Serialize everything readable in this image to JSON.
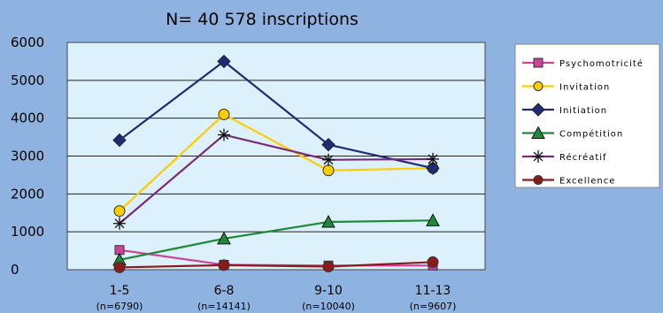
{
  "chart_data": {
    "type": "line",
    "title": "N= 40 578 inscriptions",
    "categories": [
      "1-5",
      "6-8",
      "9-10",
      "11-13"
    ],
    "category_sublabels": [
      "(n=6790)",
      "(n=14141)",
      "(n=10040)",
      "(n=9607)"
    ],
    "ylim": [
      0,
      6000
    ],
    "yticks": [
      "0",
      "1000",
      "2000",
      "3000",
      "4000",
      "5000",
      "6000"
    ],
    "grid": true,
    "legend_position": "right",
    "series": [
      {
        "name": "Psychomotricité",
        "color": "#cc4499",
        "marker": "square",
        "values": [
          520,
          130,
          110,
          110
        ]
      },
      {
        "name": "Invitation",
        "color": "#ffcc00",
        "marker": "circle",
        "values": [
          1550,
          4100,
          2620,
          2680
        ]
      },
      {
        "name": "Initiation",
        "color": "#1f2a78",
        "marker": "diamond",
        "values": [
          3420,
          5500,
          3300,
          2680
        ]
      },
      {
        "name": "Compétition",
        "color": "#1f8a3a",
        "marker": "triangle",
        "values": [
          260,
          820,
          1260,
          1300
        ]
      },
      {
        "name": "Récréatif",
        "color": "#7a2a7a",
        "marker": "star",
        "values": [
          1220,
          3560,
          2900,
          2920
        ]
      },
      {
        "name": "Excellence",
        "color": "#8b1a1a",
        "marker": "circle",
        "values": [
          60,
          120,
          80,
          200
        ]
      }
    ]
  }
}
